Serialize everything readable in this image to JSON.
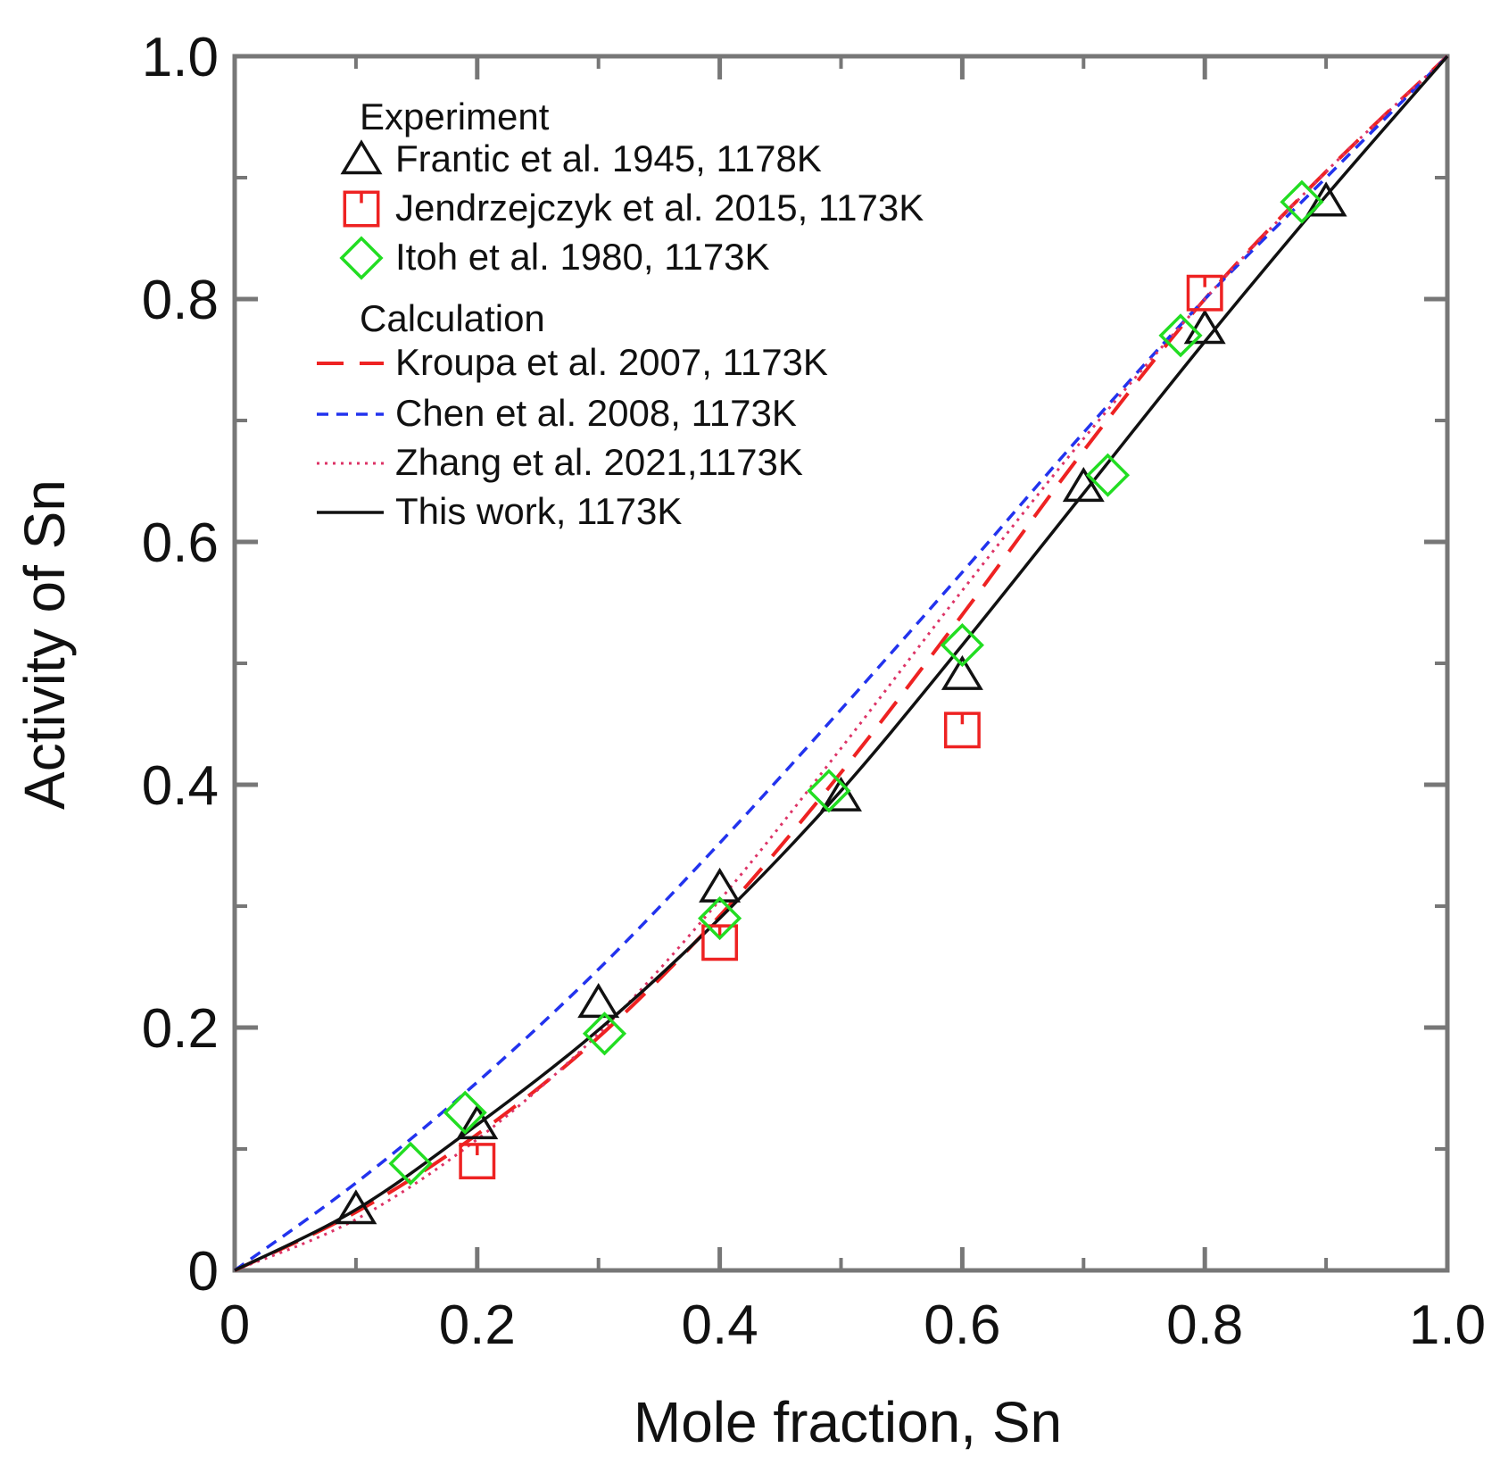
{
  "chart_data": {
    "type": "scatter",
    "title": "",
    "xlabel": "Mole fraction, Sn",
    "ylabel": "Activity of Sn",
    "xlim": [
      0,
      1.0
    ],
    "ylim": [
      0,
      1.0
    ],
    "x_ticks": [
      {
        "value": 0,
        "label": "0"
      },
      {
        "value": 0.2,
        "label": "0.2"
      },
      {
        "value": 0.4,
        "label": "0.4"
      },
      {
        "value": 0.6,
        "label": "0.6"
      },
      {
        "value": 0.8,
        "label": "0.8"
      },
      {
        "value": 1.0,
        "label": "1.0"
      }
    ],
    "y_ticks": [
      {
        "value": 0,
        "label": "0"
      },
      {
        "value": 0.2,
        "label": "0.2"
      },
      {
        "value": 0.4,
        "label": "0.4"
      },
      {
        "value": 0.6,
        "label": "0.6"
      },
      {
        "value": 0.8,
        "label": "0.8"
      },
      {
        "value": 1.0,
        "label": "1.0"
      }
    ],
    "minor_ticks": [
      0.1,
      0.3,
      0.5,
      0.7,
      0.9
    ],
    "grid": false,
    "legend_position": "top-left",
    "legend": {
      "experiment_heading": "Experiment",
      "calculation_heading": "Calculation"
    },
    "experiment_series": [
      {
        "name": "Frantic et al. 1945, 1178K",
        "marker": "triangle",
        "color": "#111111",
        "points": [
          [
            0.1,
            0.05
          ],
          [
            0.2,
            0.12
          ],
          [
            0.3,
            0.22
          ],
          [
            0.4,
            0.315
          ],
          [
            0.5,
            0.39
          ],
          [
            0.6,
            0.49
          ],
          [
            0.7,
            0.645
          ],
          [
            0.8,
            0.775
          ],
          [
            0.9,
            0.88
          ]
        ]
      },
      {
        "name": "Jendrzejczyk et al. 2015, 1173K",
        "marker": "square",
        "color": "#ee2222",
        "points": [
          [
            0.2,
            0.09
          ],
          [
            0.4,
            0.27
          ],
          [
            0.6,
            0.445
          ],
          [
            0.8,
            0.805
          ]
        ]
      },
      {
        "name": "Itoh et al. 1980, 1173K",
        "marker": "diamond",
        "color": "#22dd22",
        "points": [
          [
            0.145,
            0.088
          ],
          [
            0.19,
            0.13
          ],
          [
            0.305,
            0.195
          ],
          [
            0.4,
            0.29
          ],
          [
            0.49,
            0.395
          ],
          [
            0.6,
            0.515
          ],
          [
            0.72,
            0.655
          ],
          [
            0.78,
            0.77
          ],
          [
            0.88,
            0.88
          ]
        ]
      }
    ],
    "calculation_series": [
      {
        "name": "Kroupa et al. 2007, 1173K",
        "style": "long-dash",
        "color": "#ee2222",
        "points": [
          [
            0,
            0
          ],
          [
            0.1,
            0.048
          ],
          [
            0.2,
            0.112
          ],
          [
            0.3,
            0.192
          ],
          [
            0.4,
            0.292
          ],
          [
            0.5,
            0.41
          ],
          [
            0.6,
            0.54
          ],
          [
            0.7,
            0.675
          ],
          [
            0.8,
            0.8
          ],
          [
            0.9,
            0.905
          ],
          [
            1.0,
            1.0
          ]
        ]
      },
      {
        "name": "Chen et al. 2008, 1173K",
        "style": "dash",
        "color": "#2233ee",
        "points": [
          [
            0,
            0
          ],
          [
            0.1,
            0.072
          ],
          [
            0.2,
            0.155
          ],
          [
            0.3,
            0.248
          ],
          [
            0.4,
            0.352
          ],
          [
            0.5,
            0.462
          ],
          [
            0.6,
            0.575
          ],
          [
            0.7,
            0.69
          ],
          [
            0.8,
            0.8
          ],
          [
            0.9,
            0.9
          ],
          [
            1.0,
            1.0
          ]
        ]
      },
      {
        "name": "Zhang et al. 2021,1173K",
        "style": "dot",
        "color": "#dd3366",
        "points": [
          [
            0,
            0
          ],
          [
            0.1,
            0.042
          ],
          [
            0.2,
            0.108
          ],
          [
            0.3,
            0.195
          ],
          [
            0.4,
            0.305
          ],
          [
            0.5,
            0.43
          ],
          [
            0.6,
            0.56
          ],
          [
            0.7,
            0.685
          ],
          [
            0.8,
            0.8
          ],
          [
            0.9,
            0.905
          ],
          [
            1.0,
            1.0
          ]
        ]
      },
      {
        "name": "This work, 1173K",
        "style": "solid",
        "color": "#111111",
        "points": [
          [
            0,
            0
          ],
          [
            0.1,
            0.05
          ],
          [
            0.2,
            0.12
          ],
          [
            0.3,
            0.198
          ],
          [
            0.4,
            0.29
          ],
          [
            0.5,
            0.395
          ],
          [
            0.6,
            0.515
          ],
          [
            0.7,
            0.64
          ],
          [
            0.8,
            0.765
          ],
          [
            0.9,
            0.885
          ],
          [
            1.0,
            1.0
          ]
        ]
      }
    ]
  }
}
